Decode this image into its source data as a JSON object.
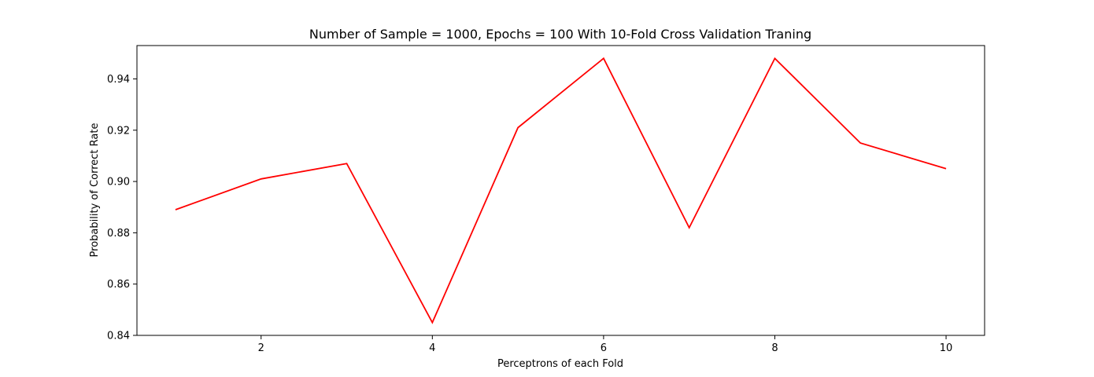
{
  "chart_data": {
    "type": "line",
    "title": "Number of Sample = 1000, Epochs = 100 With 10-Fold Cross Validation Traning",
    "xlabel": "Perceptrons of each Fold",
    "ylabel": "Probability of Correct Rate",
    "x": [
      1,
      2,
      3,
      4,
      5,
      6,
      7,
      8,
      9,
      10
    ],
    "series": [
      {
        "values": [
          0.889,
          0.901,
          0.907,
          0.845,
          0.921,
          0.948,
          0.882,
          0.948,
          0.915,
          0.905
        ],
        "color": "#ff0000"
      }
    ],
    "xlim": [
      0.55,
      10.45
    ],
    "ylim": [
      0.84,
      0.953
    ],
    "xticks": [
      2,
      4,
      6,
      8,
      10
    ],
    "xtick_labels": [
      "2",
      "4",
      "6",
      "8",
      "10"
    ],
    "yticks": [
      0.84,
      0.86,
      0.88,
      0.9,
      0.92,
      0.94
    ],
    "ytick_labels": [
      "0.84",
      "0.86",
      "0.88",
      "0.90",
      "0.92",
      "0.94"
    ],
    "grid": false,
    "legend": "none"
  }
}
